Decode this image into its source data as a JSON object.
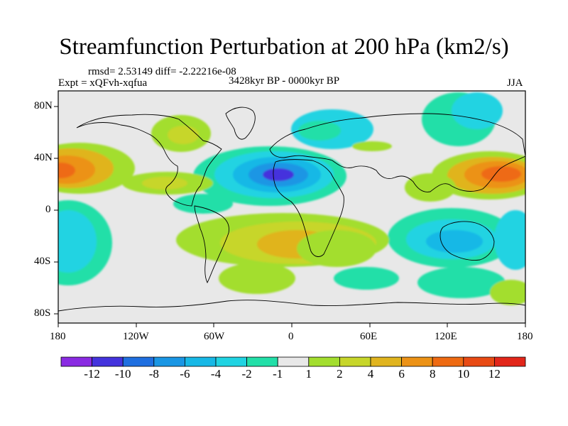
{
  "title": "Streamfunction Perturbation at 200 hPa (km2/s)",
  "stats": "rmsd= 2.53149 diff= -2.22216e-08",
  "experiment": "Expt = xQFvh-xqfua",
  "period": "3428kyr BP - 0000kyr BP",
  "season": "JJA",
  "lat_ticks": [
    "80N",
    "40N",
    "0",
    "40S",
    "80S"
  ],
  "lon_ticks": [
    "180",
    "120W",
    "60W",
    "0",
    "60E",
    "120E",
    "180"
  ],
  "colorbar": {
    "labels": [
      "-12",
      "-10",
      "-8",
      "-6",
      "-4",
      "-2",
      "-1",
      "1",
      "2",
      "4",
      "6",
      "8",
      "10",
      "12"
    ],
    "colors": [
      "#8a2be2",
      "#4433dd",
      "#1f6fe0",
      "#1a96e4",
      "#17b8e6",
      "#20d3e2",
      "#22dfa8",
      "#e8e8e8",
      "#a3de2e",
      "#c7d62a",
      "#e0b41e",
      "#ec9216",
      "#ee6a12",
      "#e84a14",
      "#e2261a"
    ]
  }
}
